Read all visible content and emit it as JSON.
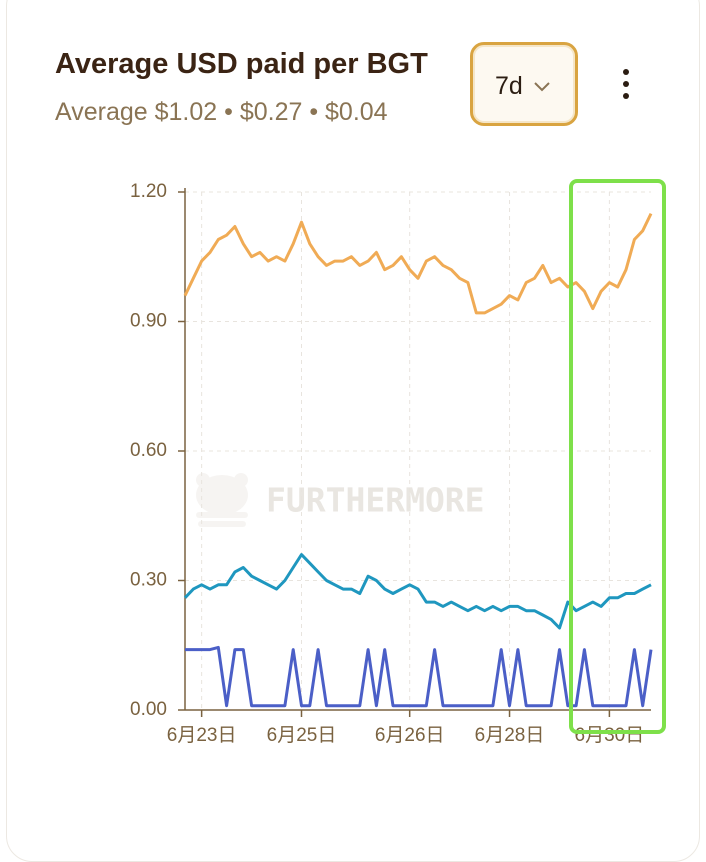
{
  "header": {
    "title": "Average USD paid per BGT",
    "subtitle": "Average $1.02 • $0.27 • $0.04",
    "period": "7d"
  },
  "chart_data": {
    "type": "line",
    "watermark": "FURTHERMORE",
    "categories": [
      null,
      null,
      "6月23日",
      null,
      null,
      null,
      null,
      null,
      null,
      null,
      null,
      null,
      null,
      null,
      "6月25日",
      null,
      null,
      null,
      null,
      null,
      null,
      null,
      null,
      null,
      null,
      null,
      null,
      "6月26日",
      null,
      null,
      null,
      null,
      null,
      null,
      null,
      null,
      null,
      null,
      null,
      "6月28日",
      null,
      null,
      null,
      null,
      null,
      null,
      null,
      null,
      null,
      null,
      null,
      "6月30日",
      null,
      null,
      null,
      null,
      null
    ],
    "series": [
      {
        "color": "#f0ab55",
        "values": [
          0.96,
          1.0,
          1.04,
          1.06,
          1.09,
          1.1,
          1.12,
          1.08,
          1.05,
          1.06,
          1.04,
          1.05,
          1.04,
          1.08,
          1.13,
          1.08,
          1.05,
          1.03,
          1.04,
          1.04,
          1.05,
          1.03,
          1.04,
          1.06,
          1.02,
          1.03,
          1.05,
          1.02,
          1.0,
          1.04,
          1.05,
          1.03,
          1.02,
          1.0,
          0.99,
          0.92,
          0.92,
          0.93,
          0.94,
          0.96,
          0.95,
          0.99,
          1.0,
          1.03,
          0.99,
          1.0,
          0.98,
          0.99,
          0.97,
          0.93,
          0.97,
          0.99,
          0.98,
          1.02,
          1.09,
          1.11,
          1.15
        ]
      },
      {
        "color": "#1f97bf",
        "values": [
          0.26,
          0.28,
          0.29,
          0.28,
          0.29,
          0.29,
          0.32,
          0.33,
          0.31,
          0.3,
          0.29,
          0.28,
          0.3,
          0.33,
          0.36,
          0.34,
          0.32,
          0.3,
          0.29,
          0.28,
          0.28,
          0.27,
          0.31,
          0.3,
          0.28,
          0.27,
          0.28,
          0.29,
          0.28,
          0.25,
          0.25,
          0.24,
          0.25,
          0.24,
          0.23,
          0.24,
          0.23,
          0.24,
          0.23,
          0.24,
          0.24,
          0.23,
          0.23,
          0.22,
          0.21,
          0.19,
          0.25,
          0.23,
          0.24,
          0.25,
          0.24,
          0.26,
          0.26,
          0.27,
          0.27,
          0.28,
          0.29
        ]
      },
      {
        "color": "#4b5fc7",
        "values": [
          0.14,
          0.14,
          0.14,
          0.14,
          0.145,
          0.01,
          0.14,
          0.14,
          0.01,
          0.01,
          0.01,
          0.01,
          0.01,
          0.14,
          0.01,
          0.01,
          0.14,
          0.01,
          0.01,
          0.01,
          0.01,
          0.01,
          0.14,
          0.01,
          0.14,
          0.01,
          0.01,
          0.01,
          0.01,
          0.01,
          0.14,
          0.01,
          0.01,
          0.01,
          0.01,
          0.01,
          0.01,
          0.01,
          0.14,
          0.01,
          0.14,
          0.01,
          0.01,
          0.01,
          0.01,
          0.14,
          0.01,
          0.01,
          0.14,
          0.01,
          0.01,
          0.01,
          0.01,
          0.01,
          0.14,
          0.01,
          0.14
        ]
      }
    ],
    "ylim": [
      0,
      1.2
    ],
    "yticks": [
      {
        "value": 0,
        "label": "0.00"
      },
      {
        "value": 0.3,
        "label": "0.30"
      },
      {
        "value": 0.6,
        "label": "0.60"
      },
      {
        "value": 0.9,
        "label": "0.90"
      },
      {
        "value": 1.2,
        "label": "1.20"
      }
    ],
    "grid": true
  }
}
